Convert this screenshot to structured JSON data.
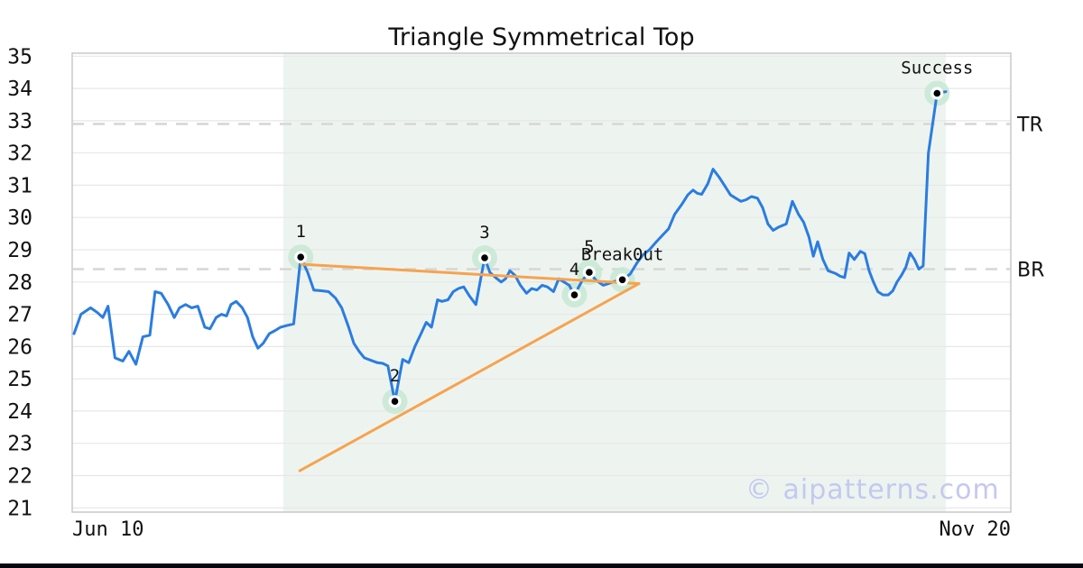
{
  "watermark": "© aipatterns.com",
  "chart_data": {
    "type": "line",
    "title": "Triangle Symmetrical Top",
    "x_tick_labels": [
      "Jun 10",
      "Nov 20"
    ],
    "y_ticks": [
      21,
      22,
      23,
      24,
      25,
      26,
      27,
      28,
      29,
      30,
      31,
      32,
      33,
      34,
      35
    ],
    "ylim": [
      21,
      35
    ],
    "grid": true,
    "colors": {
      "price": "#2b7ce0",
      "trend": "#f7a34e",
      "halo": "#c7e8d3",
      "shade": "#edf4f0",
      "grid": "#e7e7e7",
      "border": "#c9c9c9",
      "level_dash": "#d6d6d6",
      "text": "#111111",
      "watermark": "#c5c8ef",
      "bottom_bar": "#05060e"
    },
    "levels": [
      {
        "label": "TR",
        "v": 32.9
      },
      {
        "label": "BR",
        "v": 28.4
      }
    ],
    "shaded_region": {
      "t0": 0.24,
      "t1": 1.0
    },
    "trendlines": [
      {
        "name": "upper",
        "from": {
          "t": 0.261,
          "v": 28.55
        },
        "to": {
          "t": 0.648,
          "v": 27.95
        }
      },
      {
        "name": "lower",
        "from": {
          "t": 0.259,
          "v": 22.15
        },
        "to": {
          "t": 0.648,
          "v": 27.95
        }
      }
    ],
    "annotations": [
      {
        "label": "1",
        "t": 0.26,
        "v": 28.77
      },
      {
        "label": "2",
        "t": 0.368,
        "v": 24.3
      },
      {
        "label": "3",
        "t": 0.471,
        "v": 28.75
      },
      {
        "label": "4",
        "t": 0.574,
        "v": 27.6
      },
      {
        "label": "5",
        "t": 0.591,
        "v": 28.3
      },
      {
        "label": "Break0ut",
        "t": 0.629,
        "v": 28.07
      },
      {
        "label": "Success",
        "t": 0.99,
        "v": 33.85
      }
    ],
    "series": [
      {
        "name": "price",
        "color": "#2b7ce0",
        "points": [
          [
            0.0,
            26.4
          ],
          [
            0.008,
            27.0
          ],
          [
            0.019,
            27.2
          ],
          [
            0.027,
            27.05
          ],
          [
            0.033,
            26.9
          ],
          [
            0.039,
            27.25
          ],
          [
            0.047,
            25.65
          ],
          [
            0.056,
            25.55
          ],
          [
            0.063,
            25.85
          ],
          [
            0.071,
            25.45
          ],
          [
            0.079,
            26.3
          ],
          [
            0.087,
            26.35
          ],
          [
            0.093,
            27.7
          ],
          [
            0.1,
            27.65
          ],
          [
            0.108,
            27.3
          ],
          [
            0.115,
            26.9
          ],
          [
            0.121,
            27.2
          ],
          [
            0.128,
            27.3
          ],
          [
            0.135,
            27.2
          ],
          [
            0.142,
            27.25
          ],
          [
            0.15,
            26.6
          ],
          [
            0.156,
            26.55
          ],
          [
            0.163,
            26.9
          ],
          [
            0.169,
            27.0
          ],
          [
            0.175,
            26.95
          ],
          [
            0.18,
            27.3
          ],
          [
            0.186,
            27.4
          ],
          [
            0.193,
            27.2
          ],
          [
            0.199,
            26.9
          ],
          [
            0.205,
            26.3
          ],
          [
            0.211,
            25.95
          ],
          [
            0.217,
            26.1
          ],
          [
            0.224,
            26.4
          ],
          [
            0.231,
            26.5
          ],
          [
            0.237,
            26.6
          ],
          [
            0.244,
            26.65
          ],
          [
            0.252,
            26.7
          ],
          [
            0.26,
            28.77
          ],
          [
            0.268,
            28.3
          ],
          [
            0.275,
            27.75
          ],
          [
            0.284,
            27.73
          ],
          [
            0.292,
            27.7
          ],
          [
            0.3,
            27.5
          ],
          [
            0.307,
            27.2
          ],
          [
            0.315,
            26.6
          ],
          [
            0.321,
            26.1
          ],
          [
            0.327,
            25.85
          ],
          [
            0.333,
            25.65
          ],
          [
            0.341,
            25.57
          ],
          [
            0.348,
            25.5
          ],
          [
            0.354,
            25.48
          ],
          [
            0.36,
            25.4
          ],
          [
            0.368,
            24.3
          ],
          [
            0.377,
            25.6
          ],
          [
            0.384,
            25.5
          ],
          [
            0.391,
            26.0
          ],
          [
            0.398,
            26.4
          ],
          [
            0.404,
            26.75
          ],
          [
            0.41,
            26.6
          ],
          [
            0.417,
            27.45
          ],
          [
            0.422,
            27.4
          ],
          [
            0.429,
            27.45
          ],
          [
            0.435,
            27.7
          ],
          [
            0.441,
            27.8
          ],
          [
            0.447,
            27.85
          ],
          [
            0.454,
            27.55
          ],
          [
            0.461,
            27.3
          ],
          [
            0.471,
            28.75
          ],
          [
            0.477,
            28.3
          ],
          [
            0.483,
            28.15
          ],
          [
            0.49,
            28.0
          ],
          [
            0.495,
            28.1
          ],
          [
            0.5,
            28.35
          ],
          [
            0.506,
            28.2
          ],
          [
            0.512,
            27.9
          ],
          [
            0.519,
            27.65
          ],
          [
            0.525,
            27.8
          ],
          [
            0.531,
            27.75
          ],
          [
            0.537,
            27.9
          ],
          [
            0.543,
            27.85
          ],
          [
            0.55,
            27.7
          ],
          [
            0.556,
            28.1
          ],
          [
            0.562,
            28.0
          ],
          [
            0.568,
            27.9
          ],
          [
            0.574,
            27.6
          ],
          [
            0.583,
            28.05
          ],
          [
            0.591,
            28.3
          ],
          [
            0.599,
            28.05
          ],
          [
            0.607,
            27.9
          ],
          [
            0.613,
            27.95
          ],
          [
            0.62,
            28.02
          ],
          [
            0.629,
            28.07
          ],
          [
            0.638,
            28.25
          ],
          [
            0.646,
            28.6
          ],
          [
            0.653,
            28.85
          ],
          [
            0.66,
            29.0
          ],
          [
            0.668,
            29.25
          ],
          [
            0.675,
            29.45
          ],
          [
            0.682,
            29.65
          ],
          [
            0.689,
            30.1
          ],
          [
            0.697,
            30.4
          ],
          [
            0.704,
            30.7
          ],
          [
            0.71,
            30.85
          ],
          [
            0.715,
            30.75
          ],
          [
            0.72,
            30.72
          ],
          [
            0.727,
            31.05
          ],
          [
            0.733,
            31.5
          ],
          [
            0.74,
            31.25
          ],
          [
            0.746,
            31.0
          ],
          [
            0.753,
            30.7
          ],
          [
            0.759,
            30.6
          ],
          [
            0.765,
            30.5
          ],
          [
            0.771,
            30.55
          ],
          [
            0.777,
            30.65
          ],
          [
            0.784,
            30.6
          ],
          [
            0.79,
            30.3
          ],
          [
            0.796,
            29.8
          ],
          [
            0.802,
            29.6
          ],
          [
            0.808,
            29.7
          ],
          [
            0.817,
            29.8
          ],
          [
            0.824,
            30.5
          ],
          [
            0.831,
            30.1
          ],
          [
            0.837,
            29.85
          ],
          [
            0.843,
            29.4
          ],
          [
            0.848,
            28.8
          ],
          [
            0.853,
            29.25
          ],
          [
            0.859,
            28.7
          ],
          [
            0.865,
            28.35
          ],
          [
            0.873,
            28.27
          ],
          [
            0.879,
            28.18
          ],
          [
            0.884,
            28.14
          ],
          [
            0.889,
            28.9
          ],
          [
            0.895,
            28.7
          ],
          [
            0.902,
            28.95
          ],
          [
            0.907,
            28.88
          ],
          [
            0.912,
            28.35
          ],
          [
            0.917,
            28.0
          ],
          [
            0.922,
            27.7
          ],
          [
            0.928,
            27.6
          ],
          [
            0.934,
            27.6
          ],
          [
            0.939,
            27.72
          ],
          [
            0.944,
            28.0
          ],
          [
            0.949,
            28.2
          ],
          [
            0.954,
            28.45
          ],
          [
            0.959,
            28.9
          ],
          [
            0.964,
            28.7
          ],
          [
            0.969,
            28.4
          ],
          [
            0.974,
            28.5
          ],
          [
            0.98,
            32.0
          ],
          [
            0.99,
            33.85
          ],
          [
            1.0,
            33.9
          ]
        ]
      }
    ]
  }
}
